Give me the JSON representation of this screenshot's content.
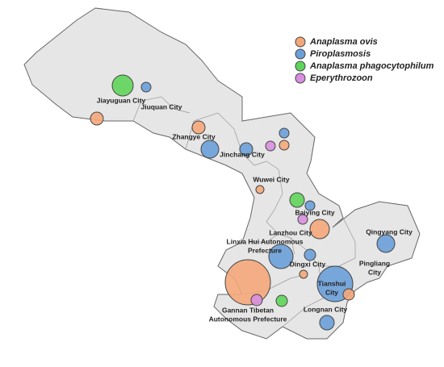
{
  "legend": [
    {
      "name": "Anaplasma ovis",
      "color": "#f4a77a"
    },
    {
      "name": "Piroplasmosis",
      "color": "#6a9fd8"
    },
    {
      "name": "Anaplasma phagocytophilum",
      "color": "#5fd45a"
    },
    {
      "name": "Eperythrozoon",
      "color": "#d98fe0"
    }
  ],
  "cities": [
    {
      "lines": [
        "Jiayuguan City"
      ]
    },
    {
      "lines": [
        "Jiuquan City"
      ]
    },
    {
      "lines": [
        "Zhangye City"
      ]
    },
    {
      "lines": [
        "Jinchang City"
      ]
    },
    {
      "lines": [
        "Wuwei City"
      ]
    },
    {
      "lines": [
        "Baiying City"
      ]
    },
    {
      "lines": [
        "Lanzhou City"
      ]
    },
    {
      "lines": [
        "Linxia Hui Autonomous",
        "Prefecture"
      ]
    },
    {
      "lines": [
        "Qingyang City"
      ]
    },
    {
      "lines": [
        "Dingxi City"
      ]
    },
    {
      "lines": [
        "Pingliang",
        "City"
      ]
    },
    {
      "lines": [
        "Gannan Tibetan",
        "Autonomous Prefecture"
      ]
    },
    {
      "lines": [
        "Tianshui",
        "City"
      ]
    },
    {
      "lines": [
        "Longnan City"
      ]
    }
  ]
}
